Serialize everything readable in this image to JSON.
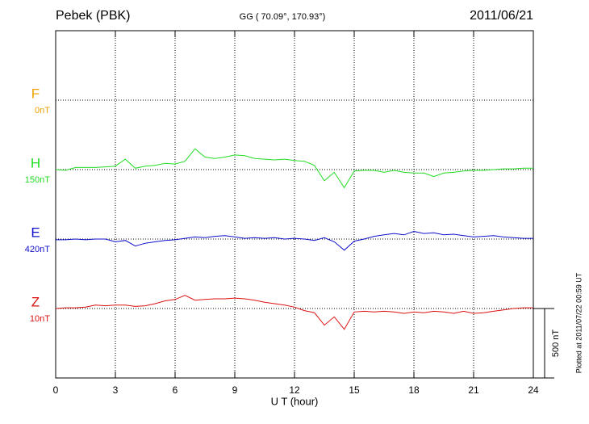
{
  "chart_data": {
    "type": "line",
    "title": "Pebek (PBK)",
    "subtitle": "GG ( 70.09°, 170.93°)",
    "date": "2011/06/21",
    "x_label": "U T (hour)",
    "note": "Plotted at 2011/07/22 00:59 UT",
    "xlim": [
      0,
      24
    ],
    "xticks": [
      0,
      3,
      6,
      9,
      12,
      15,
      18,
      21,
      24
    ],
    "grid": true,
    "scale_bar": {
      "value": 500,
      "label": "500 nT"
    },
    "x": [
      0,
      0.5,
      1,
      1.5,
      2,
      2.5,
      3,
      3.5,
      4,
      4.5,
      5,
      5.5,
      6,
      6.5,
      7,
      7.5,
      8,
      8.5,
      9,
      9.5,
      10,
      10.5,
      11,
      11.5,
      12,
      12.5,
      13,
      13.5,
      14,
      14.5,
      15,
      15.5,
      16,
      16.5,
      17,
      17.5,
      18,
      18.5,
      19,
      19.5,
      20,
      20.5,
      21,
      21.5,
      22,
      22.5,
      23,
      23.5,
      24
    ],
    "channels": [
      {
        "name": "F",
        "baseline": "0nT",
        "color": "#f0a000"
      },
      {
        "name": "H",
        "baseline": "150nT",
        "color": "#22dd22",
        "values": [
          0,
          -5,
          15,
          15,
          15,
          20,
          25,
          75,
          10,
          25,
          30,
          45,
          40,
          60,
          150,
          90,
          80,
          90,
          105,
          100,
          80,
          75,
          70,
          75,
          65,
          60,
          30,
          -80,
          -20,
          -130,
          -10,
          -5,
          -5,
          -20,
          -5,
          -20,
          -25,
          -25,
          -50,
          -25,
          -20,
          -10,
          -5,
          -5,
          0,
          5,
          5,
          10,
          10
        ]
      },
      {
        "name": "E",
        "baseline": "420nT",
        "color": "#1010cc",
        "values": [
          -5,
          -5,
          0,
          -5,
          0,
          0,
          -20,
          -10,
          -50,
          -30,
          -20,
          -10,
          -5,
          5,
          15,
          10,
          20,
          25,
          15,
          5,
          10,
          5,
          10,
          0,
          5,
          0,
          -10,
          10,
          -20,
          -80,
          -15,
          0,
          20,
          30,
          40,
          30,
          55,
          40,
          45,
          30,
          35,
          25,
          15,
          20,
          25,
          15,
          10,
          5,
          5
        ]
      },
      {
        "name": "Z",
        "baseline": "10nT",
        "color": "#dd1010",
        "values": [
          0,
          5,
          5,
          10,
          25,
          20,
          25,
          25,
          15,
          20,
          35,
          55,
          65,
          95,
          60,
          65,
          70,
          70,
          75,
          70,
          60,
          45,
          35,
          25,
          10,
          -15,
          -30,
          -120,
          -60,
          -150,
          -25,
          -20,
          -25,
          -20,
          -25,
          -35,
          -25,
          -30,
          -20,
          -25,
          -35,
          -20,
          -35,
          -30,
          -20,
          -10,
          0,
          5,
          5
        ]
      }
    ]
  }
}
